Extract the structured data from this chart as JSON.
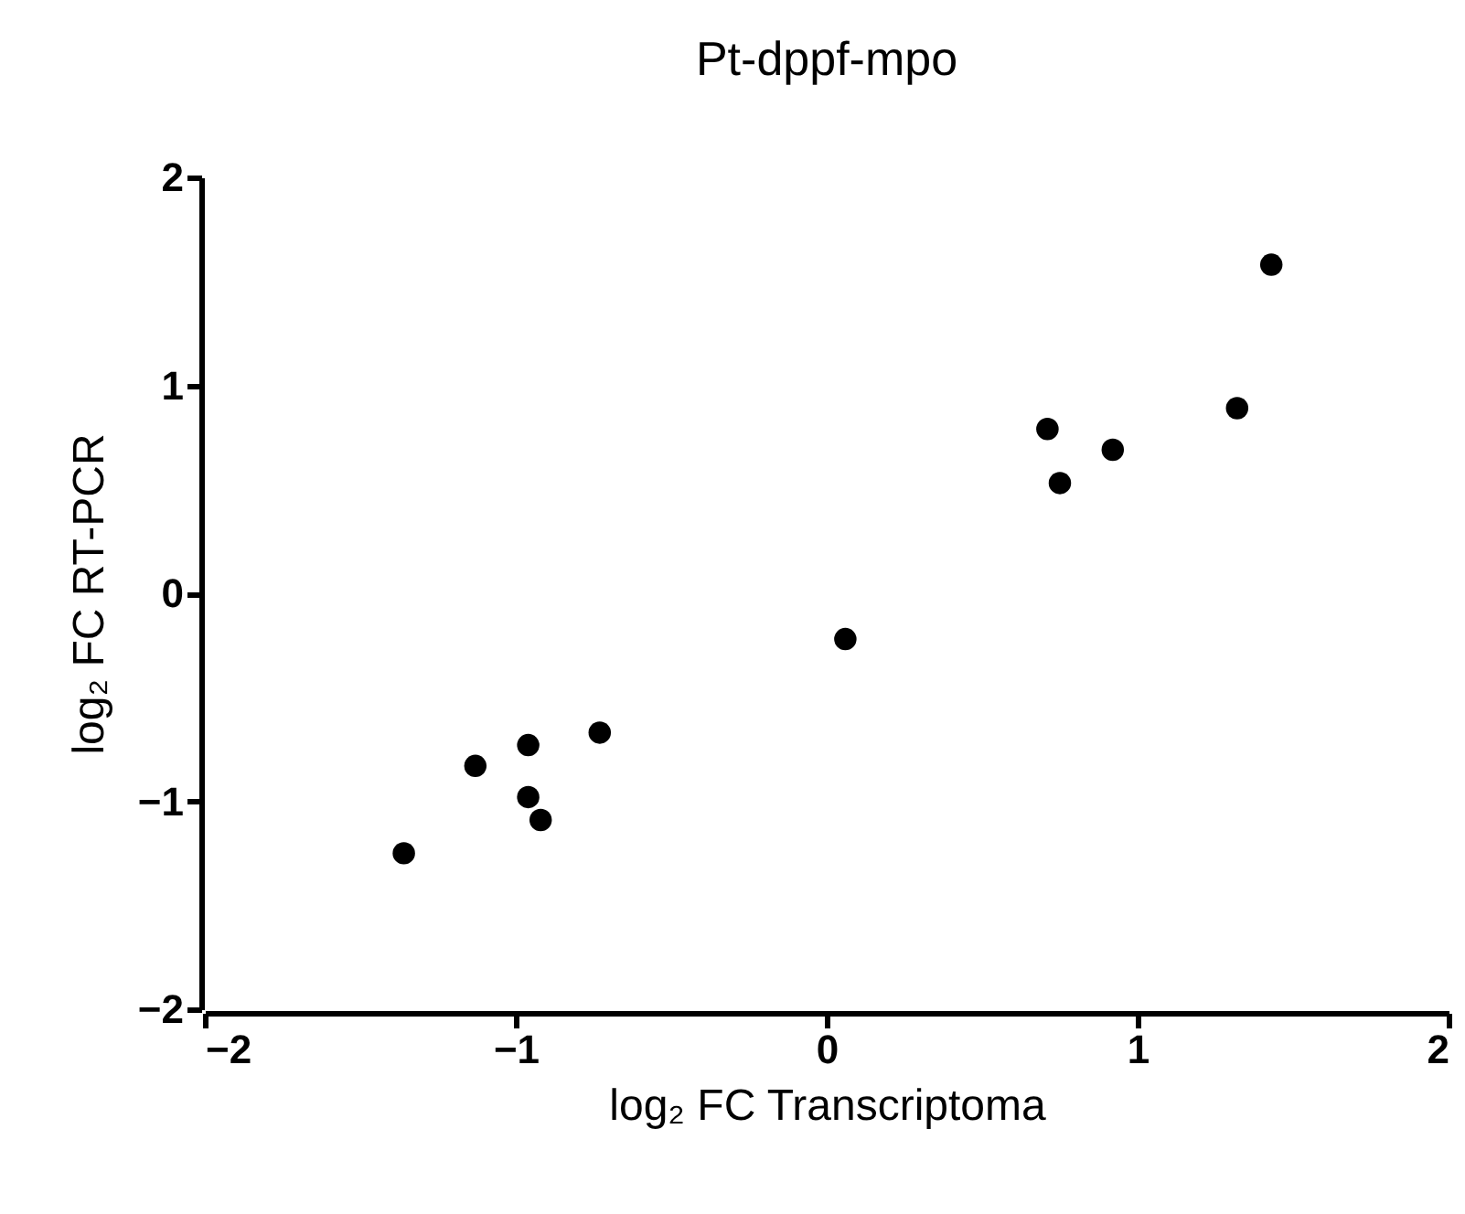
{
  "chart_data": {
    "type": "scatter",
    "title": "Pt-dppf-mpo",
    "xlabel": "log₂ FC Transcriptoma",
    "ylabel": "log₂ FC RT-PCR",
    "x": [
      -1.36,
      -1.13,
      -0.96,
      -0.96,
      -0.92,
      -0.73,
      0.06,
      0.71,
      0.75,
      0.92,
      1.32,
      1.43
    ],
    "series": [
      {
        "color": "#000000",
        "values": [
          -1.25,
          -0.83,
          -0.98,
          -0.73,
          -1.09,
          -0.67,
          -0.22,
          0.79,
          0.53,
          0.69,
          0.89,
          1.58
        ]
      }
    ],
    "xlim": [
      -2,
      2
    ],
    "xticks": [
      -2,
      -1,
      0,
      1,
      2
    ],
    "ylim": [
      -2,
      2
    ],
    "yticks": [
      -2,
      -1,
      0,
      1,
      2
    ],
    "marker": "circle",
    "grid": false
  }
}
